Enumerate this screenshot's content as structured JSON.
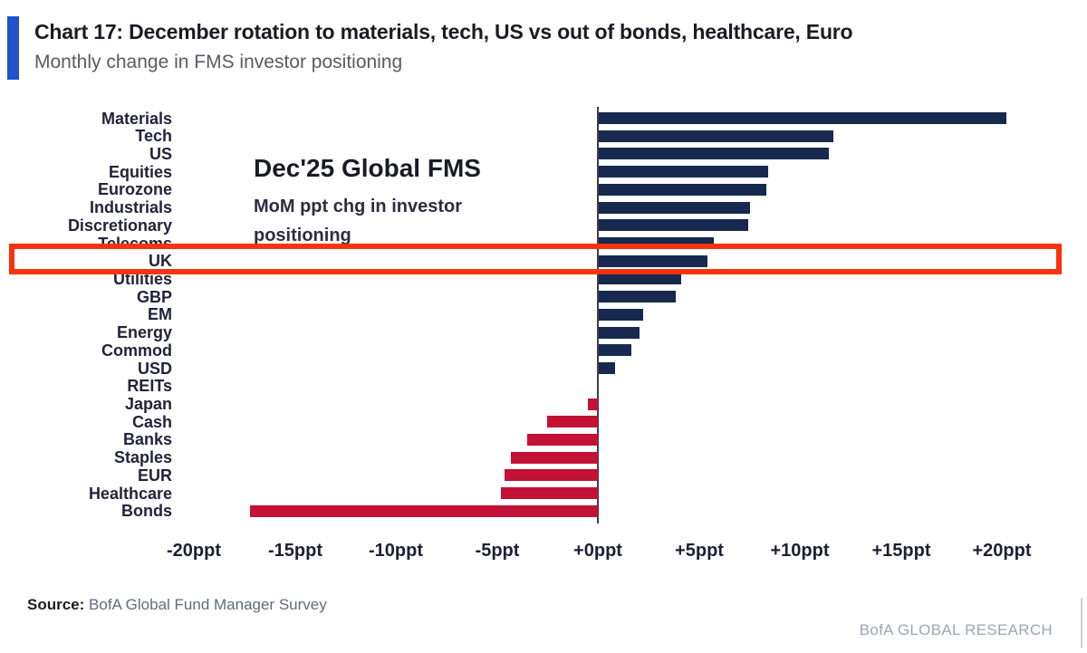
{
  "header": {
    "title": "Chart 17: December rotation to materials, tech, US vs out of bonds, healthcare, Euro",
    "subtitle": "Monthly change in FMS investor positioning"
  },
  "annotation": {
    "title": "Dec'25 Global FMS",
    "line1": "MoM ppt chg in investor",
    "line2": "positioning"
  },
  "chart_data": {
    "type": "bar",
    "orientation": "horizontal",
    "title": "Dec'25 Global FMS",
    "subtitle": "MoM ppt chg in investor positioning",
    "unit": "ppt",
    "xlim": [
      -22.5,
      23
    ],
    "grid": false,
    "categories": [
      "Materials",
      "Tech",
      "US",
      "Equities",
      "Eurozone",
      "Industrials",
      "Discretionary",
      "Telecoms",
      "UK",
      "Utilities",
      "GBP",
      "EM",
      "Energy",
      "Commod",
      "USD",
      "REITs",
      "Japan",
      "Cash",
      "Banks",
      "Staples",
      "EUR",
      "Healthcare",
      "Bonds"
    ],
    "values": [
      20.2,
      11.6,
      11.4,
      8.4,
      8.3,
      7.5,
      7.4,
      5.7,
      5.4,
      4.1,
      3.8,
      2.2,
      2.0,
      1.6,
      0.8,
      0.0,
      -0.5,
      -2.5,
      -3.5,
      -4.3,
      -4.6,
      -4.8,
      -17.2
    ],
    "x_ticks": [
      {
        "label": "-20ppt",
        "value": -20
      },
      {
        "label": "-15ppt",
        "value": -15
      },
      {
        "label": "-10ppt",
        "value": -10
      },
      {
        "label": "-5ppt",
        "value": -5
      },
      {
        "label": "+0ppt",
        "value": 0
      },
      {
        "label": "+5ppt",
        "value": 5
      },
      {
        "label": "+10ppt",
        "value": 10
      },
      {
        "label": "+15ppt",
        "value": 15
      },
      {
        "label": "+20ppt",
        "value": 20
      }
    ],
    "positive_color": "#17294e",
    "negative_color": "#c41136",
    "highlighted_category": "UK",
    "highlight_color": "#f6330f"
  },
  "source": {
    "label": "Source:",
    "text": " BofA Global Fund Manager Survey"
  },
  "footer": {
    "text": "BofA GLOBAL RESEARCH"
  },
  "colors": {
    "accent_blue": "#1f55c8",
    "axis_line": "#3f3f46"
  }
}
